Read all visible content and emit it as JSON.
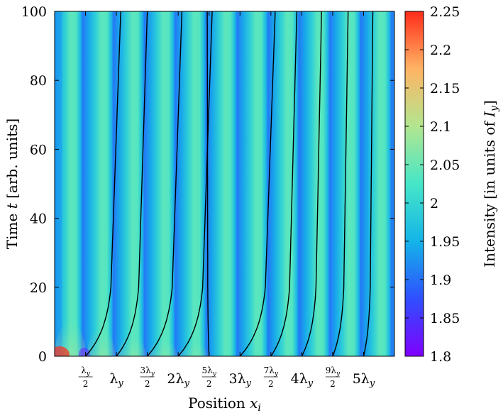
{
  "chart_data": {
    "type": "heatmap",
    "xlabel": "Position x_i",
    "xlabel_parts": {
      "main": "Position ",
      "var": "x",
      "sub": "i"
    },
    "ylabel": "Time t [arb. units]",
    "ylabel_parts": {
      "pre": "Time ",
      "var": "t",
      "post": " [arb. units]"
    },
    "colorbar_label": "Intensity [in units of I_y]",
    "colorbar_label_parts": {
      "pre": "Intensity [in units of ",
      "var": "I",
      "sub": "y",
      "post": "]"
    },
    "ylim": [
      0,
      100
    ],
    "yticks": [
      {
        "value": 0,
        "label": "0"
      },
      {
        "value": 20,
        "label": "20"
      },
      {
        "value": 40,
        "label": "40"
      },
      {
        "value": 60,
        "label": "60"
      },
      {
        "value": 80,
        "label": "80"
      },
      {
        "value": 100,
        "label": "100"
      }
    ],
    "xlim_lambda": [
      0,
      5.5
    ],
    "xticks": [
      {
        "value": 0.5,
        "num": "λy",
        "den": "2",
        "kind": "frac"
      },
      {
        "value": 1.0,
        "coef": "",
        "kind": "whole"
      },
      {
        "value": 1.5,
        "num": "3λy",
        "den": "2",
        "kind": "frac"
      },
      {
        "value": 2.0,
        "coef": "2",
        "kind": "whole"
      },
      {
        "value": 2.5,
        "num": "5λy",
        "den": "2",
        "kind": "frac"
      },
      {
        "value": 3.0,
        "coef": "3",
        "kind": "whole"
      },
      {
        "value": 3.5,
        "num": "7λy",
        "den": "2",
        "kind": "frac"
      },
      {
        "value": 4.0,
        "coef": "4",
        "kind": "whole"
      },
      {
        "value": 4.5,
        "num": "9λy",
        "den": "2",
        "kind": "frac"
      },
      {
        "value": 5.0,
        "coef": "5",
        "kind": "whole"
      }
    ],
    "colorbar_range": [
      1.8,
      2.25
    ],
    "colorbar_ticks": [
      {
        "value": 1.8,
        "label": "1.8"
      },
      {
        "value": 1.85,
        "label": "1.85"
      },
      {
        "value": 1.9,
        "label": "1.9"
      },
      {
        "value": 1.95,
        "label": "1.95"
      },
      {
        "value": 2.0,
        "label": "2"
      },
      {
        "value": 2.05,
        "label": "2.05"
      },
      {
        "value": 2.1,
        "label": "2.1"
      },
      {
        "value": 2.15,
        "label": "2.15"
      },
      {
        "value": 2.2,
        "label": "2.2"
      },
      {
        "value": 2.25,
        "label": "2.25"
      }
    ],
    "colormap": [
      "#7f00ff",
      "#2f4fff",
      "#14b4e8",
      "#46e6c8",
      "#b2e68f",
      "#ffb464",
      "#ff2c1a"
    ],
    "stripe_period_lambda": 0.5,
    "trajectories": [
      {
        "x0": 0.5,
        "x_final": 1.07
      },
      {
        "x0": 1.0,
        "x_final": 1.5
      },
      {
        "x0": 1.5,
        "x_final": 2.06
      },
      {
        "x0": 2.0,
        "x_final": 2.55
      },
      {
        "x0": 2.5,
        "x_final": 2.47
      },
      {
        "x0": 3.0,
        "x_final": 3.57
      },
      {
        "x0": 3.5,
        "x_final": 3.92
      },
      {
        "x0": 4.0,
        "x_final": 4.32
      },
      {
        "x0": 4.5,
        "x_final": 4.75
      },
      {
        "x0": 5.0,
        "x_final": 5.15
      }
    ]
  }
}
